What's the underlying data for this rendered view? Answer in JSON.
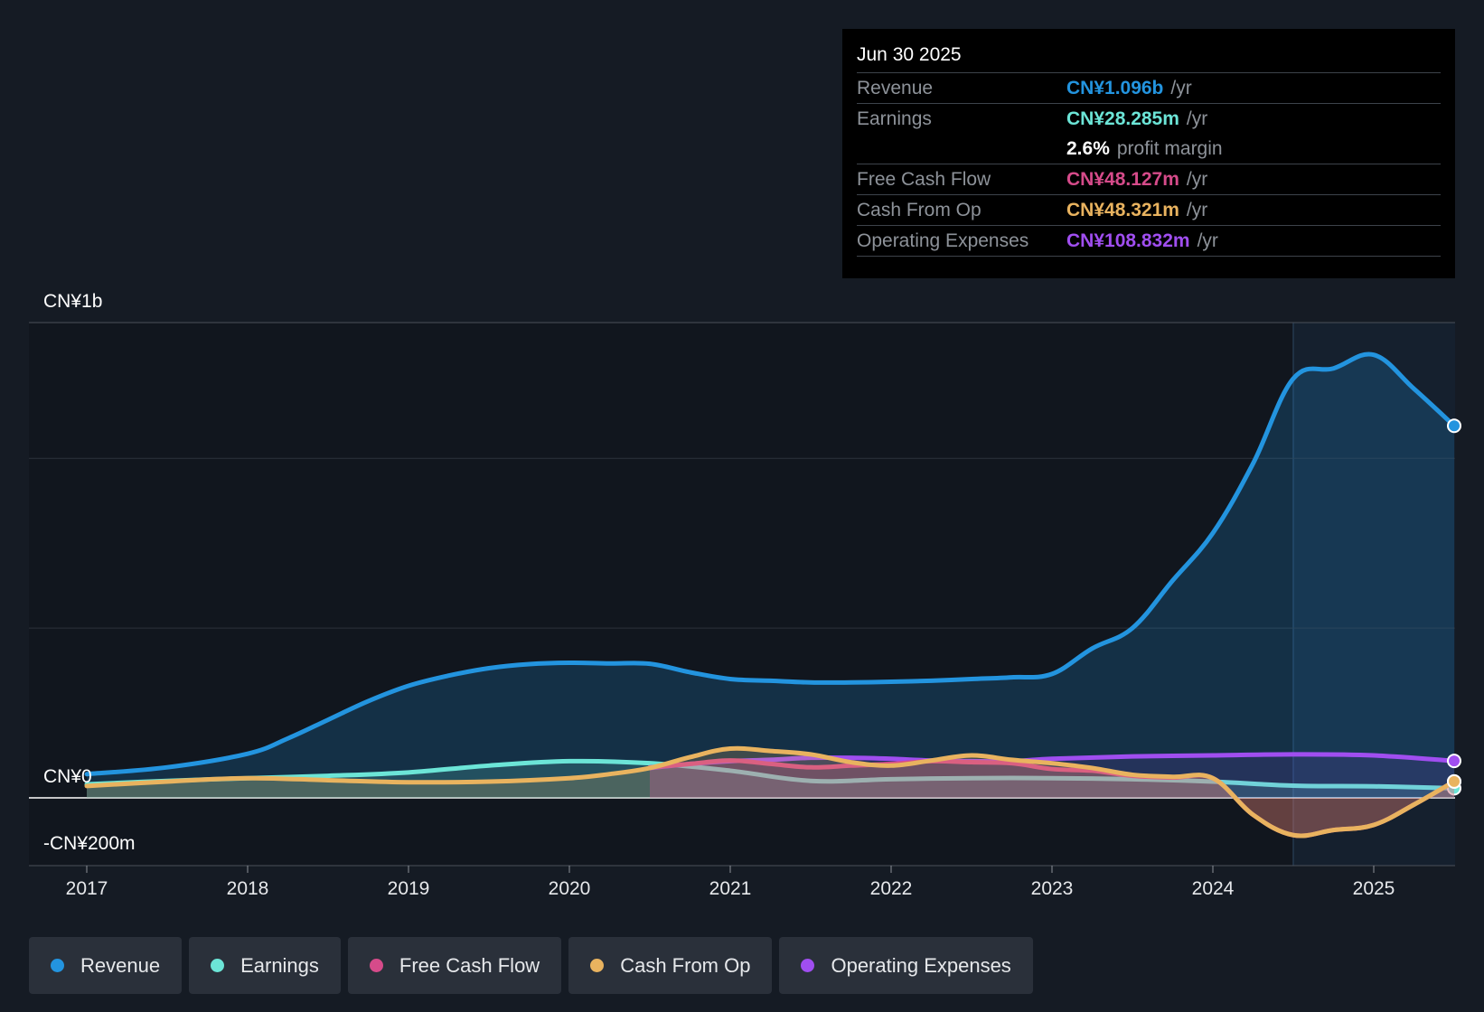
{
  "colors": {
    "background": "#151b24",
    "revenue": "#2394df",
    "earnings": "#6ce5d7",
    "free_cash_flow": "#d64b8a",
    "cash_from_op": "#e9b35f",
    "operating_expenses": "#a04ef0"
  },
  "tooltip": {
    "date": "Jun 30 2025",
    "rows": [
      {
        "label": "Revenue",
        "value": "CN¥1.096b",
        "unit": "/yr"
      },
      {
        "label": "Earnings",
        "value": "CN¥28.285m",
        "unit": "/yr"
      },
      {
        "label": "",
        "value": "2.6%",
        "unit": "profit margin"
      },
      {
        "label": "Free Cash Flow",
        "value": "CN¥48.127m",
        "unit": "/yr"
      },
      {
        "label": "Cash From Op",
        "value": "CN¥48.321m",
        "unit": "/yr"
      },
      {
        "label": "Operating Expenses",
        "value": "CN¥108.832m",
        "unit": "/yr"
      }
    ]
  },
  "legend": [
    {
      "name": "Revenue",
      "color": "#2394df"
    },
    {
      "name": "Earnings",
      "color": "#6ce5d7"
    },
    {
      "name": "Free Cash Flow",
      "color": "#d64b8a"
    },
    {
      "name": "Cash From Op",
      "color": "#e9b35f"
    },
    {
      "name": "Operating Expenses",
      "color": "#a04ef0"
    }
  ],
  "chart_data": {
    "type": "area",
    "title": "",
    "xlabel": "",
    "ylabel": "",
    "currency": "CN¥",
    "xlim": [
      2016.63,
      2025.5
    ],
    "ylim": [
      -200,
      1400
    ],
    "y_axis_labels": [
      {
        "value": 1400,
        "label": "CN¥1b"
      },
      {
        "value": 0,
        "label": "CN¥0"
      },
      {
        "value": -200,
        "label": "-CN¥200m"
      }
    ],
    "x_ticks": [
      2017,
      2018,
      2019,
      2020,
      2021,
      2022,
      2023,
      2024,
      2025
    ],
    "x_tick_labels": [
      "2017",
      "2018",
      "2019",
      "2020",
      "2021",
      "2022",
      "2023",
      "2024",
      "2025"
    ],
    "gridlines": [
      1400,
      1000,
      500,
      0,
      -200
    ],
    "highlight_from": 2024.5,
    "series": [
      {
        "name": "Revenue",
        "key": "revenue",
        "x": [
          2017.0,
          2017.5,
          2018.0,
          2018.25,
          2018.5,
          2018.75,
          2019.0,
          2019.25,
          2019.5,
          2019.75,
          2020.0,
          2020.25,
          2020.5,
          2020.75,
          2021.0,
          2021.25,
          2021.5,
          2021.75,
          2022.0,
          2022.25,
          2022.5,
          2022.75,
          2023.0,
          2023.25,
          2023.5,
          2023.75,
          2024.0,
          2024.25,
          2024.5,
          2024.75,
          2025.0,
          2025.25,
          2025.5
        ],
        "values": [
          70,
          90,
          130,
          175,
          230,
          285,
          330,
          360,
          382,
          394,
          398,
          396,
          395,
          370,
          350,
          345,
          340,
          340,
          342,
          345,
          350,
          355,
          365,
          440,
          500,
          640,
          780,
          985,
          1235,
          1265,
          1305,
          1205,
          1096
        ]
      },
      {
        "name": "Earnings",
        "key": "earnings",
        "x": [
          2017.0,
          2017.5,
          2018.0,
          2018.5,
          2019.0,
          2019.5,
          2020.0,
          2020.5,
          2021.0,
          2021.5,
          2022.0,
          2022.5,
          2023.0,
          2023.5,
          2024.0,
          2024.5,
          2025.0,
          2025.5
        ],
        "values": [
          40,
          50,
          58,
          65,
          75,
          95,
          108,
          102,
          80,
          50,
          55,
          58,
          58,
          55,
          48,
          36,
          34,
          28.285
        ]
      },
      {
        "name": "Free Cash Flow",
        "key": "free_cash_flow",
        "x": [
          2020.5,
          2020.75,
          2021.0,
          2021.25,
          2021.5,
          2021.75,
          2022.0,
          2022.25,
          2022.5,
          2022.75,
          2023.0,
          2023.25,
          2023.5,
          2023.75,
          2024.0,
          2024.25,
          2024.5,
          2024.75,
          2025.0,
          2025.25,
          2025.5
        ],
        "values": [
          90,
          100,
          110,
          100,
          90,
          95,
          100,
          108,
          105,
          102,
          85,
          80,
          65,
          60,
          58,
          -50,
          -110,
          -95,
          -80,
          -20,
          48.127
        ]
      },
      {
        "name": "Cash From Op",
        "key": "cash_from_op",
        "x": [
          2017.0,
          2017.5,
          2018.0,
          2018.5,
          2019.0,
          2019.5,
          2020.0,
          2020.25,
          2020.5,
          2020.75,
          2021.0,
          2021.25,
          2021.5,
          2021.75,
          2022.0,
          2022.25,
          2022.5,
          2022.75,
          2023.0,
          2023.25,
          2023.5,
          2023.75,
          2024.0,
          2024.25,
          2024.5,
          2024.75,
          2025.0,
          2025.25,
          2025.5
        ],
        "values": [
          35,
          48,
          58,
          52,
          46,
          48,
          58,
          70,
          88,
          120,
          145,
          138,
          128,
          105,
          95,
          110,
          125,
          112,
          102,
          88,
          68,
          62,
          58,
          -50,
          -110,
          -95,
          -80,
          -20,
          48.321
        ]
      },
      {
        "name": "Operating Expenses",
        "key": "operating_expenses",
        "x": [
          2020.5,
          2020.75,
          2021.0,
          2021.25,
          2021.5,
          2021.75,
          2022.0,
          2022.25,
          2022.5,
          2022.75,
          2023.0,
          2023.5,
          2024.0,
          2024.5,
          2025.0,
          2025.5
        ],
        "values": [
          88,
          100,
          108,
          112,
          118,
          118,
          115,
          110,
          108,
          108,
          115,
          122,
          125,
          128,
          125,
          108.832
        ]
      }
    ]
  }
}
